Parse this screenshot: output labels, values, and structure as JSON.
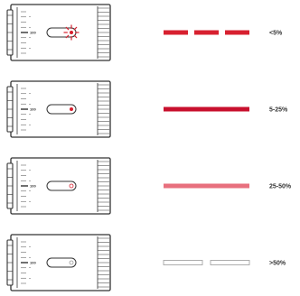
{
  "battery_levels": [
    {
      "id": "blinking",
      "label": "<5%",
      "led_state": "blinking",
      "indicator_style": "dashed",
      "indicator_color": "#d7202f",
      "led_color": "#d7202f",
      "scale_main": "100"
    },
    {
      "id": "solid-red",
      "label": "5-25%",
      "led_state": "on",
      "indicator_style": "solid",
      "indicator_color": "#c8102e",
      "led_color": "#d7202f",
      "scale_main": "100"
    },
    {
      "id": "faint-red",
      "label": "25-50%",
      "led_state": "off",
      "indicator_style": "solid",
      "indicator_color": "#e8707e",
      "led_color": "#d7202f",
      "scale_main": "100"
    },
    {
      "id": "off",
      "label": ">50%",
      "led_state": "off",
      "indicator_style": "hollow-dashed",
      "indicator_color": "#999999",
      "led_color": "#999999",
      "scale_main": "100"
    }
  ],
  "colors": {
    "outline": "#333333",
    "scale": "#666666"
  }
}
